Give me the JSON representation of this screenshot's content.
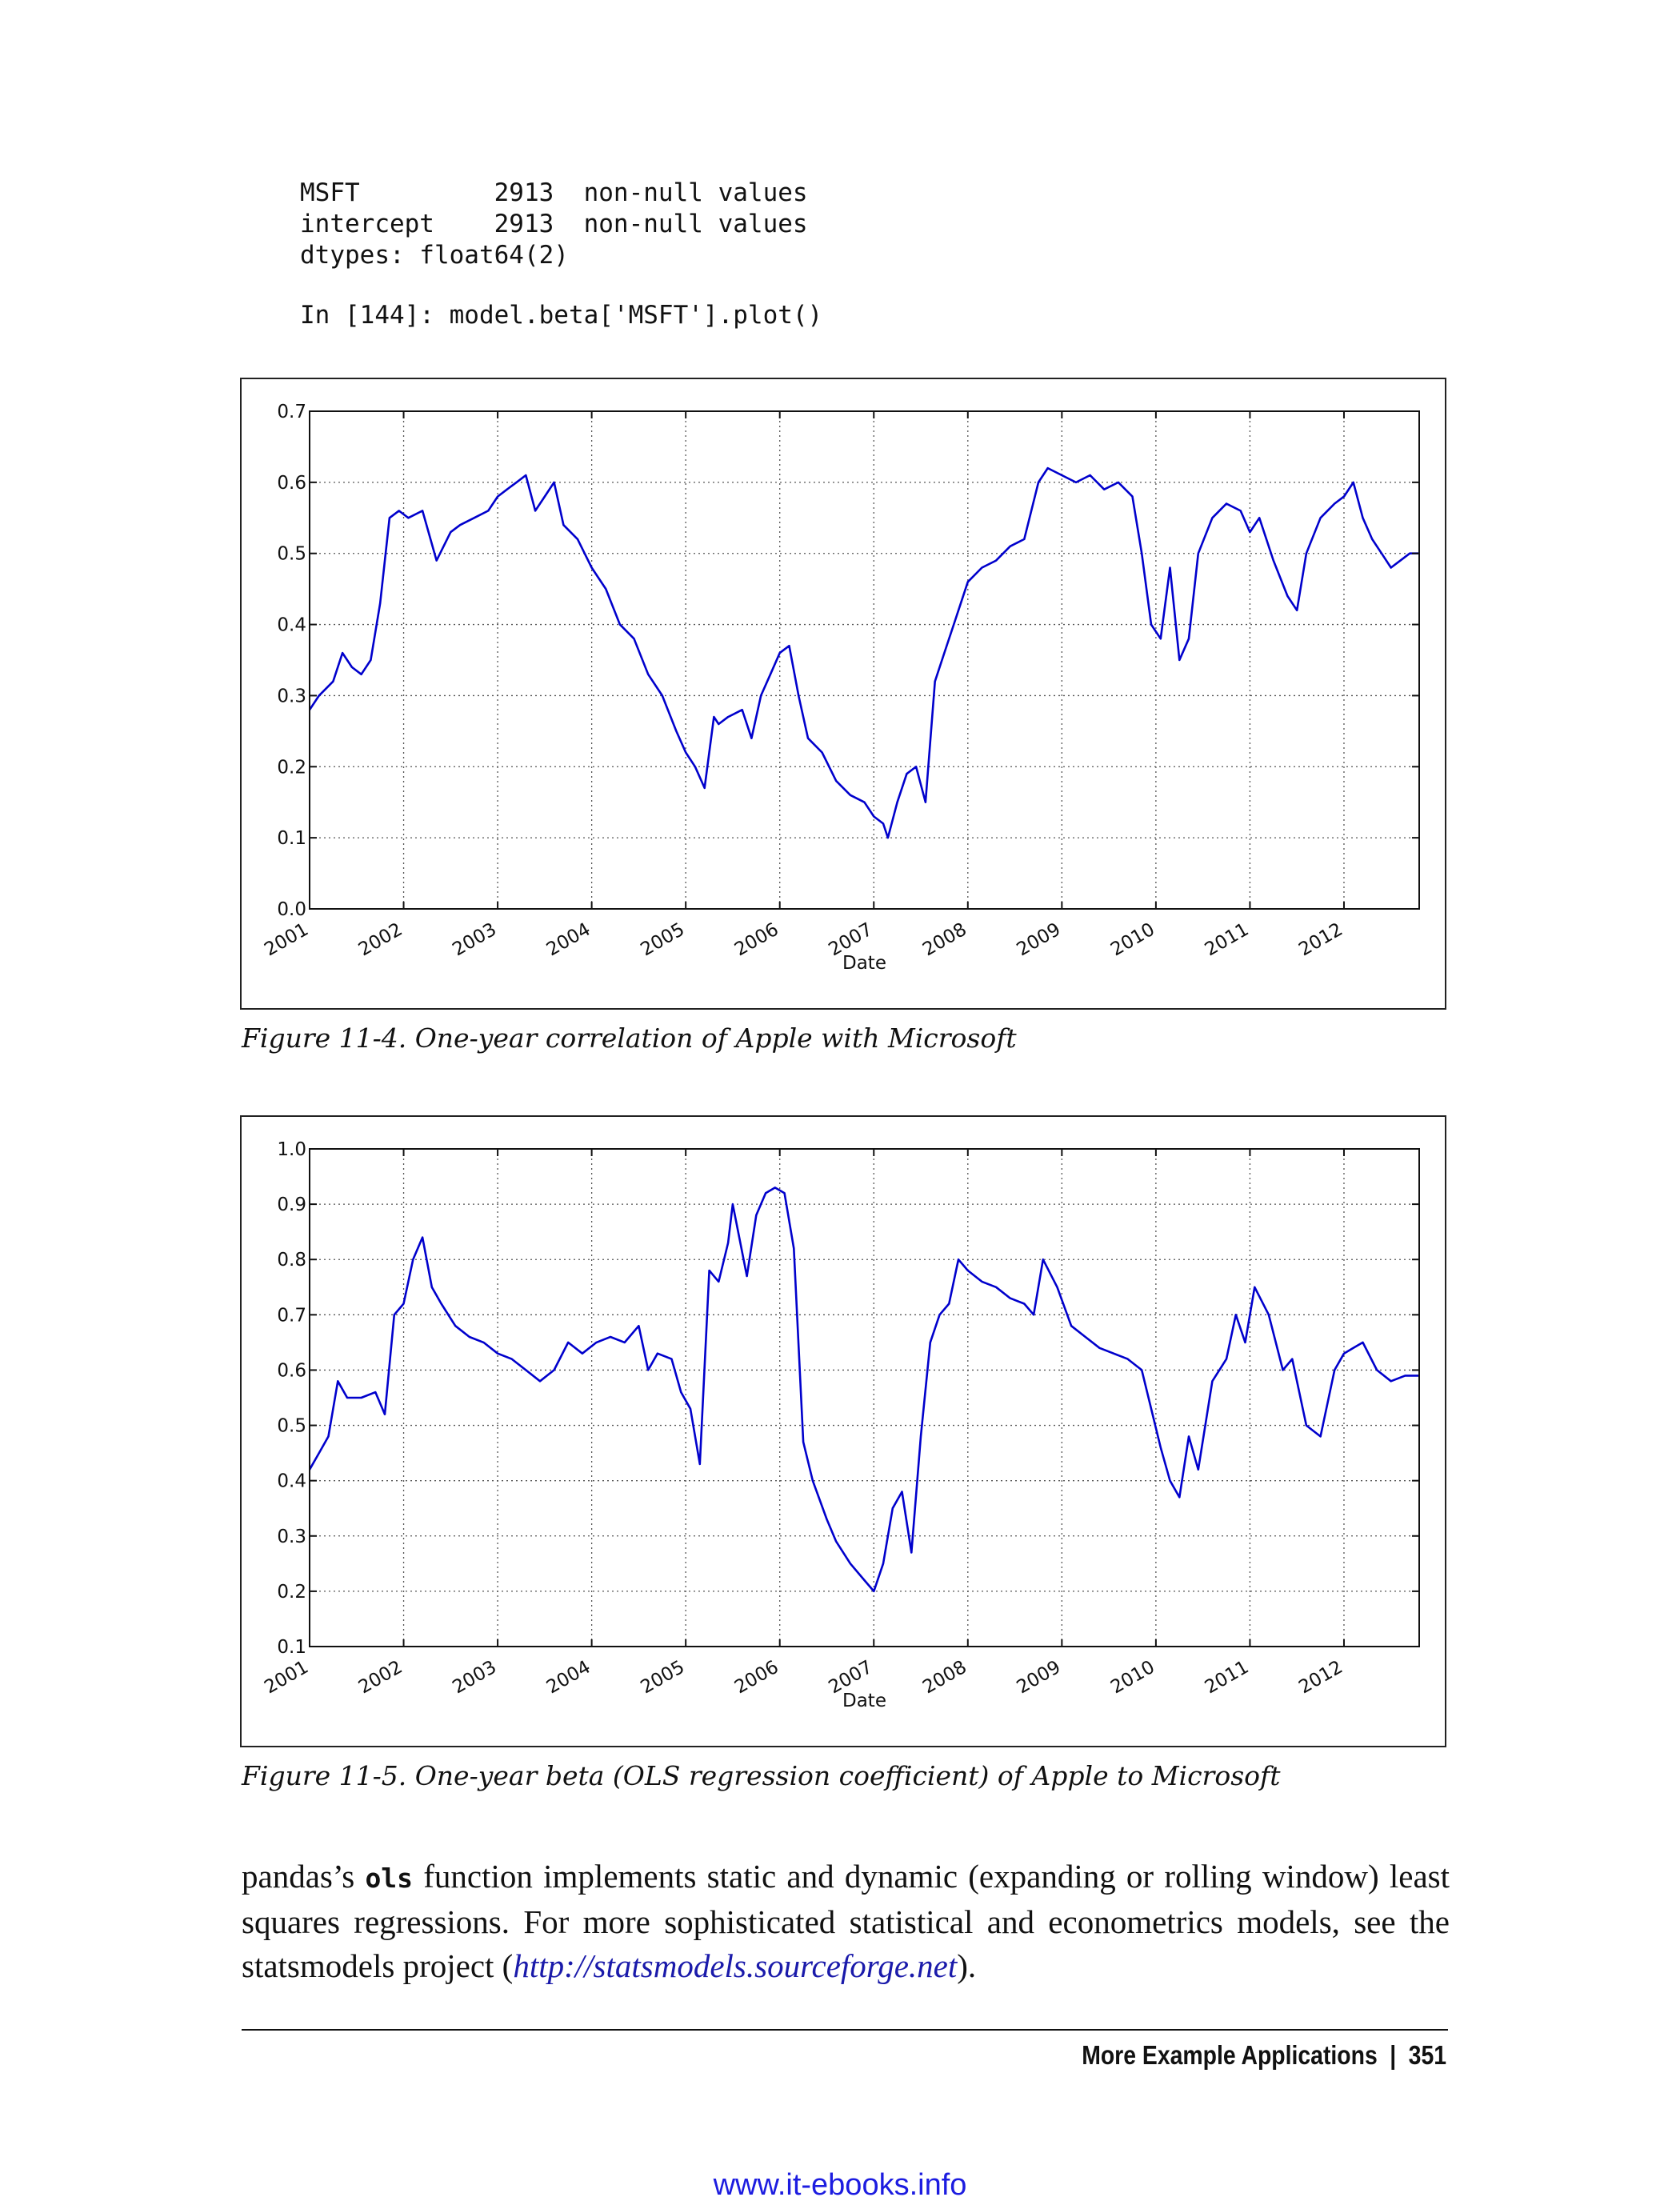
{
  "code_block": {
    "lines": [
      "MSFT         2913  non-null values",
      "intercept    2913  non-null values",
      "dtypes: float64(2)",
      "In [144]: model.beta['MSFT'].plot()"
    ]
  },
  "figures": [
    {
      "caption": "Figure 11-4. One-year correlation of Apple with Microsoft"
    },
    {
      "caption": "Figure 11-5. One-year beta (OLS regression coefficient) of Apple to Microsoft"
    }
  ],
  "body": {
    "text_before_code": "pandas’s ",
    "code_word": "ols",
    "text_after_code": " function implements static and dynamic (expanding or rolling window) least squares regressions. For more sophisticated statistical and econometrics models, see the statsmodels project (",
    "link_text": "http://statsmodels.sourceforge.net",
    "text_end": ")."
  },
  "footer": {
    "section": "More Example Applications",
    "separator": "|",
    "page_number": "351"
  },
  "watermark": "www.it-ebooks.info",
  "chart_data": [
    {
      "type": "line",
      "title": "",
      "xlabel": "Date",
      "ylabel": "",
      "xlim": [
        2001.0,
        2012.8
      ],
      "ylim": [
        0.0,
        0.7
      ],
      "x_ticks": [
        "2001",
        "2002",
        "2003",
        "2004",
        "2005",
        "2006",
        "2007",
        "2008",
        "2009",
        "2010",
        "2011",
        "2012"
      ],
      "y_ticks": [
        "0.0",
        "0.1",
        "0.2",
        "0.3",
        "0.4",
        "0.5",
        "0.6",
        "0.7"
      ],
      "grid": true,
      "line_color": "#0000cc",
      "series": [
        {
          "x": [
            2001.0,
            2001.1,
            2001.25,
            2001.35,
            2001.45,
            2001.55,
            2001.65,
            2001.75,
            2001.85,
            2001.95,
            2002.05,
            2002.2,
            2002.35,
            2002.5,
            2002.6,
            2002.75,
            2002.9,
            2003.0,
            2003.1,
            2003.2,
            2003.3,
            2003.4,
            2003.5,
            2003.6,
            2003.7,
            2003.85,
            2004.0,
            2004.15,
            2004.3,
            2004.45,
            2004.6,
            2004.75,
            2004.9,
            2005.0,
            2005.1,
            2005.2,
            2005.3,
            2005.35,
            2005.45,
            2005.6,
            2005.7,
            2005.8,
            2005.9,
            2006.0,
            2006.1,
            2006.2,
            2006.3,
            2006.45,
            2006.6,
            2006.75,
            2006.9,
            2007.0,
            2007.1,
            2007.15,
            2007.25,
            2007.35,
            2007.45,
            2007.55,
            2007.65,
            2007.75,
            2007.85,
            2008.0,
            2008.15,
            2008.3,
            2008.45,
            2008.6,
            2008.75,
            2008.85,
            2009.0,
            2009.15,
            2009.3,
            2009.45,
            2009.6,
            2009.75,
            2009.85,
            2009.95,
            2010.05,
            2010.15,
            2010.25,
            2010.35,
            2010.45,
            2010.6,
            2010.75,
            2010.9,
            2011.0,
            2011.1,
            2011.25,
            2011.4,
            2011.5,
            2011.6,
            2011.75,
            2011.9,
            2012.0,
            2012.1,
            2012.2,
            2012.3,
            2012.4,
            2012.5,
            2012.6,
            2012.7,
            2012.8
          ],
          "y": [
            0.28,
            0.3,
            0.32,
            0.36,
            0.34,
            0.33,
            0.35,
            0.43,
            0.55,
            0.56,
            0.55,
            0.56,
            0.49,
            0.53,
            0.54,
            0.55,
            0.56,
            0.58,
            0.59,
            0.6,
            0.61,
            0.56,
            0.58,
            0.6,
            0.54,
            0.52,
            0.48,
            0.45,
            0.4,
            0.38,
            0.33,
            0.3,
            0.25,
            0.22,
            0.2,
            0.17,
            0.27,
            0.26,
            0.27,
            0.28,
            0.24,
            0.3,
            0.33,
            0.36,
            0.37,
            0.3,
            0.24,
            0.22,
            0.18,
            0.16,
            0.15,
            0.13,
            0.12,
            0.1,
            0.15,
            0.19,
            0.2,
            0.15,
            0.32,
            0.36,
            0.4,
            0.46,
            0.48,
            0.49,
            0.51,
            0.52,
            0.6,
            0.62,
            0.61,
            0.6,
            0.61,
            0.59,
            0.6,
            0.58,
            0.5,
            0.4,
            0.38,
            0.48,
            0.35,
            0.38,
            0.5,
            0.55,
            0.57,
            0.56,
            0.53,
            0.55,
            0.49,
            0.44,
            0.42,
            0.5,
            0.55,
            0.57,
            0.58,
            0.6,
            0.55,
            0.52,
            0.5,
            0.48,
            0.49,
            0.5,
            0.5
          ]
        }
      ]
    },
    {
      "type": "line",
      "title": "",
      "xlabel": "Date",
      "ylabel": "",
      "xlim": [
        2001.0,
        2012.8
      ],
      "ylim": [
        0.1,
        1.0
      ],
      "x_ticks": [
        "2001",
        "2002",
        "2003",
        "2004",
        "2005",
        "2006",
        "2007",
        "2008",
        "2009",
        "2010",
        "2011",
        "2012"
      ],
      "y_ticks": [
        "0.1",
        "0.2",
        "0.3",
        "0.4",
        "0.5",
        "0.6",
        "0.7",
        "0.8",
        "0.9",
        "1.0"
      ],
      "grid": true,
      "line_color": "#0000cc",
      "series": [
        {
          "x": [
            2001.0,
            2001.1,
            2001.2,
            2001.3,
            2001.4,
            2001.55,
            2001.7,
            2001.8,
            2001.9,
            2002.0,
            2002.1,
            2002.2,
            2002.3,
            2002.4,
            2002.55,
            2002.7,
            2002.85,
            2003.0,
            2003.15,
            2003.3,
            2003.45,
            2003.6,
            2003.75,
            2003.9,
            2004.05,
            2004.2,
            2004.35,
            2004.5,
            2004.6,
            2004.7,
            2004.85,
            2004.95,
            2005.05,
            2005.15,
            2005.25,
            2005.35,
            2005.45,
            2005.5,
            2005.65,
            2005.75,
            2005.85,
            2005.95,
            2006.05,
            2006.15,
            2006.25,
            2006.35,
            2006.5,
            2006.6,
            2006.75,
            2006.9,
            2007.0,
            2007.1,
            2007.2,
            2007.3,
            2007.4,
            2007.5,
            2007.6,
            2007.7,
            2007.8,
            2007.9,
            2008.0,
            2008.15,
            2008.3,
            2008.45,
            2008.6,
            2008.7,
            2008.8,
            2008.95,
            2009.1,
            2009.25,
            2009.4,
            2009.55,
            2009.7,
            2009.85,
            2009.95,
            2010.05,
            2010.15,
            2010.25,
            2010.35,
            2010.45,
            2010.6,
            2010.75,
            2010.85,
            2010.95,
            2011.05,
            2011.2,
            2011.35,
            2011.45,
            2011.6,
            2011.75,
            2011.9,
            2012.0,
            2012.1,
            2012.2,
            2012.35,
            2012.5,
            2012.65,
            2012.8
          ],
          "y": [
            0.42,
            0.45,
            0.48,
            0.58,
            0.55,
            0.55,
            0.56,
            0.52,
            0.7,
            0.72,
            0.8,
            0.84,
            0.75,
            0.72,
            0.68,
            0.66,
            0.65,
            0.63,
            0.62,
            0.6,
            0.58,
            0.6,
            0.65,
            0.63,
            0.65,
            0.66,
            0.65,
            0.68,
            0.6,
            0.63,
            0.62,
            0.56,
            0.53,
            0.43,
            0.78,
            0.76,
            0.83,
            0.9,
            0.77,
            0.88,
            0.92,
            0.93,
            0.92,
            0.82,
            0.47,
            0.4,
            0.33,
            0.29,
            0.25,
            0.22,
            0.2,
            0.25,
            0.35,
            0.38,
            0.27,
            0.48,
            0.65,
            0.7,
            0.72,
            0.8,
            0.78,
            0.76,
            0.75,
            0.73,
            0.72,
            0.7,
            0.8,
            0.75,
            0.68,
            0.66,
            0.64,
            0.63,
            0.62,
            0.6,
            0.53,
            0.46,
            0.4,
            0.37,
            0.48,
            0.42,
            0.58,
            0.62,
            0.7,
            0.65,
            0.75,
            0.7,
            0.6,
            0.62,
            0.5,
            0.48,
            0.6,
            0.63,
            0.64,
            0.65,
            0.6,
            0.58,
            0.59,
            0.59
          ]
        }
      ]
    }
  ]
}
